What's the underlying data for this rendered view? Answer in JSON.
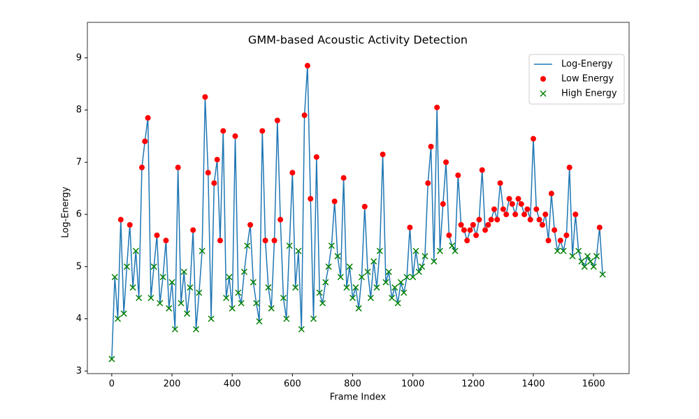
{
  "chart_data": {
    "type": "line",
    "title": "GMM-based Acoustic Activity Detection",
    "xlabel": "Frame Index",
    "ylabel": "Log-Energy",
    "xlim": [
      -81,
      1718
    ],
    "ylim": [
      2.95,
      9.68
    ],
    "xticks": [
      0,
      200,
      400,
      600,
      800,
      1000,
      1200,
      1400,
      1600
    ],
    "yticks": [
      3,
      4,
      5,
      6,
      7,
      8,
      9
    ],
    "legend": "upper right",
    "series": [
      {
        "name": "Log-Energy",
        "type": "line",
        "color": "#1f77b4",
        "x": [
          0,
          10,
          20,
          30,
          40,
          50,
          60,
          70,
          80,
          90,
          100,
          110,
          120,
          130,
          140,
          150,
          160,
          170,
          180,
          190,
          200,
          210,
          220,
          230,
          240,
          250,
          260,
          270,
          280,
          290,
          300,
          310,
          320,
          330,
          340,
          350,
          360,
          370,
          380,
          390,
          400,
          410,
          420,
          430,
          440,
          450,
          460,
          470,
          480,
          490,
          500,
          510,
          520,
          530,
          540,
          550,
          560,
          570,
          580,
          590,
          600,
          610,
          620,
          630,
          640,
          650,
          660,
          670,
          680,
          690,
          700,
          710,
          720,
          730,
          740,
          750,
          760,
          770,
          780,
          790,
          800,
          810,
          820,
          830,
          840,
          850,
          860,
          870,
          880,
          890,
          900,
          910,
          920,
          930,
          940,
          950,
          960,
          970,
          980,
          990,
          1000,
          1010,
          1020,
          1030,
          1040,
          1050,
          1060,
          1070,
          1080,
          1090,
          1100,
          1110,
          1120,
          1130,
          1140,
          1150,
          1160,
          1170,
          1180,
          1190,
          1200,
          1210,
          1220,
          1230,
          1240,
          1250,
          1260,
          1270,
          1280,
          1290,
          1300,
          1310,
          1320,
          1330,
          1340,
          1350,
          1360,
          1370,
          1380,
          1390,
          1400,
          1410,
          1420,
          1430,
          1440,
          1450,
          1460,
          1470,
          1480,
          1490,
          1500,
          1510,
          1520,
          1530,
          1540,
          1550,
          1560,
          1570,
          1580,
          1590,
          1600,
          1610,
          1620,
          1630
        ],
        "values": [
          3.23,
          4.8,
          4.0,
          5.9,
          4.1,
          5.0,
          5.8,
          4.6,
          5.3,
          4.4,
          6.9,
          7.4,
          7.85,
          4.4,
          5.0,
          5.6,
          4.3,
          4.8,
          5.5,
          4.2,
          4.7,
          3.8,
          6.9,
          4.3,
          4.9,
          4.1,
          4.6,
          5.7,
          3.8,
          4.5,
          5.3,
          8.25,
          6.8,
          4.0,
          6.6,
          7.05,
          5.5,
          7.6,
          4.4,
          4.8,
          4.2,
          7.5,
          4.5,
          4.3,
          4.9,
          5.4,
          5.8,
          4.7,
          4.3,
          3.95,
          7.6,
          5.5,
          4.6,
          4.2,
          5.5,
          7.8,
          5.9,
          4.4,
          4.0,
          5.4,
          6.8,
          4.6,
          5.3,
          3.8,
          7.9,
          8.85,
          6.3,
          4.0,
          7.1,
          4.5,
          4.3,
          4.7,
          5.0,
          5.4,
          6.25,
          5.2,
          4.8,
          6.7,
          4.6,
          5.0,
          4.4,
          4.6,
          4.2,
          4.8,
          6.15,
          4.9,
          4.4,
          5.1,
          4.6,
          5.3,
          7.15,
          4.7,
          4.9,
          4.4,
          4.6,
          4.3,
          4.7,
          4.5,
          4.8,
          5.75,
          4.8,
          5.3,
          4.9,
          5.0,
          5.2,
          6.6,
          7.3,
          5.1,
          8.05,
          5.3,
          6.2,
          7.0,
          5.6,
          5.4,
          5.3,
          6.75,
          5.8,
          5.7,
          5.5,
          5.7,
          5.8,
          5.6,
          5.9,
          6.85,
          5.7,
          5.8,
          5.9,
          6.1,
          5.9,
          6.6,
          6.1,
          6.0,
          6.3,
          6.2,
          6.0,
          6.3,
          6.2,
          6.0,
          6.1,
          5.9,
          7.45,
          6.1,
          5.9,
          5.8,
          6.0,
          5.5,
          6.4,
          5.7,
          5.3,
          5.5,
          5.3,
          5.6,
          6.9,
          5.2,
          6.0,
          5.3,
          5.1,
          5.0,
          5.2,
          5.1,
          5.0,
          5.2,
          5.75,
          4.85
        ]
      },
      {
        "name": "Low Energy",
        "type": "scatter",
        "marker": "o",
        "color": "#ff0000",
        "x": [
          30,
          60,
          100,
          110,
          120,
          150,
          180,
          220,
          270,
          310,
          320,
          340,
          350,
          360,
          370,
          410,
          460,
          500,
          510,
          540,
          550,
          560,
          600,
          640,
          650,
          660,
          680,
          740,
          770,
          840,
          900,
          990,
          1050,
          1060,
          1080,
          1100,
          1110,
          1120,
          1150,
          1160,
          1170,
          1180,
          1190,
          1200,
          1210,
          1220,
          1230,
          1240,
          1250,
          1260,
          1270,
          1280,
          1290,
          1300,
          1310,
          1320,
          1330,
          1340,
          1350,
          1360,
          1370,
          1380,
          1390,
          1400,
          1410,
          1420,
          1430,
          1440,
          1450,
          1460,
          1470,
          1490,
          1510,
          1520,
          1540,
          1620
        ],
        "values": [
          5.9,
          5.8,
          6.9,
          7.4,
          7.85,
          5.6,
          5.5,
          6.9,
          5.7,
          8.25,
          6.8,
          6.6,
          7.05,
          5.5,
          7.6,
          7.5,
          5.8,
          7.6,
          5.5,
          5.5,
          7.8,
          5.9,
          6.8,
          7.9,
          8.85,
          6.3,
          7.1,
          6.25,
          6.7,
          6.15,
          7.15,
          5.75,
          6.6,
          7.3,
          8.05,
          6.2,
          7.0,
          5.6,
          6.75,
          5.8,
          5.7,
          5.5,
          5.7,
          5.8,
          5.6,
          5.9,
          6.85,
          5.7,
          5.8,
          5.9,
          6.1,
          5.9,
          6.6,
          6.1,
          6.0,
          6.3,
          6.2,
          6.0,
          6.3,
          6.2,
          6.0,
          6.1,
          5.9,
          7.45,
          6.1,
          5.9,
          5.8,
          6.0,
          5.5,
          6.4,
          5.7,
          5.5,
          5.6,
          6.9,
          6.0,
          5.75
        ]
      },
      {
        "name": "High Energy",
        "type": "scatter",
        "marker": "x",
        "color": "#008000",
        "x": [
          0,
          10,
          20,
          40,
          50,
          70,
          80,
          90,
          130,
          140,
          160,
          170,
          190,
          200,
          210,
          230,
          240,
          250,
          260,
          280,
          290,
          300,
          330,
          380,
          390,
          400,
          420,
          430,
          440,
          450,
          470,
          480,
          490,
          520,
          530,
          570,
          580,
          590,
          610,
          620,
          630,
          670,
          690,
          700,
          710,
          720,
          730,
          750,
          760,
          780,
          790,
          800,
          810,
          820,
          830,
          850,
          860,
          870,
          880,
          890,
          910,
          920,
          930,
          940,
          950,
          960,
          970,
          980,
          1000,
          1010,
          1020,
          1030,
          1040,
          1070,
          1090,
          1130,
          1140,
          1480,
          1500,
          1530,
          1550,
          1560,
          1570,
          1580,
          1590,
          1600,
          1610,
          1630
        ],
        "values": [
          3.23,
          4.8,
          4.0,
          4.1,
          5.0,
          4.6,
          5.3,
          4.4,
          4.4,
          5.0,
          4.3,
          4.8,
          4.2,
          4.7,
          3.8,
          4.3,
          4.9,
          4.1,
          4.6,
          3.8,
          4.5,
          5.3,
          4.0,
          4.4,
          4.8,
          4.2,
          4.5,
          4.3,
          4.9,
          5.4,
          4.7,
          4.3,
          3.95,
          4.6,
          4.2,
          4.4,
          4.0,
          5.4,
          4.6,
          5.3,
          3.8,
          4.0,
          4.5,
          4.3,
          4.7,
          5.0,
          5.4,
          5.2,
          4.8,
          4.6,
          5.0,
          4.4,
          4.6,
          4.2,
          4.8,
          4.9,
          4.4,
          5.1,
          4.6,
          5.3,
          4.7,
          4.9,
          4.4,
          4.6,
          4.3,
          4.7,
          4.5,
          4.8,
          4.8,
          5.3,
          4.9,
          5.0,
          5.2,
          5.1,
          5.3,
          5.4,
          5.3,
          5.3,
          5.3,
          5.2,
          5.3,
          5.1,
          5.0,
          5.2,
          5.1,
          5.0,
          5.2,
          4.85
        ]
      }
    ]
  }
}
